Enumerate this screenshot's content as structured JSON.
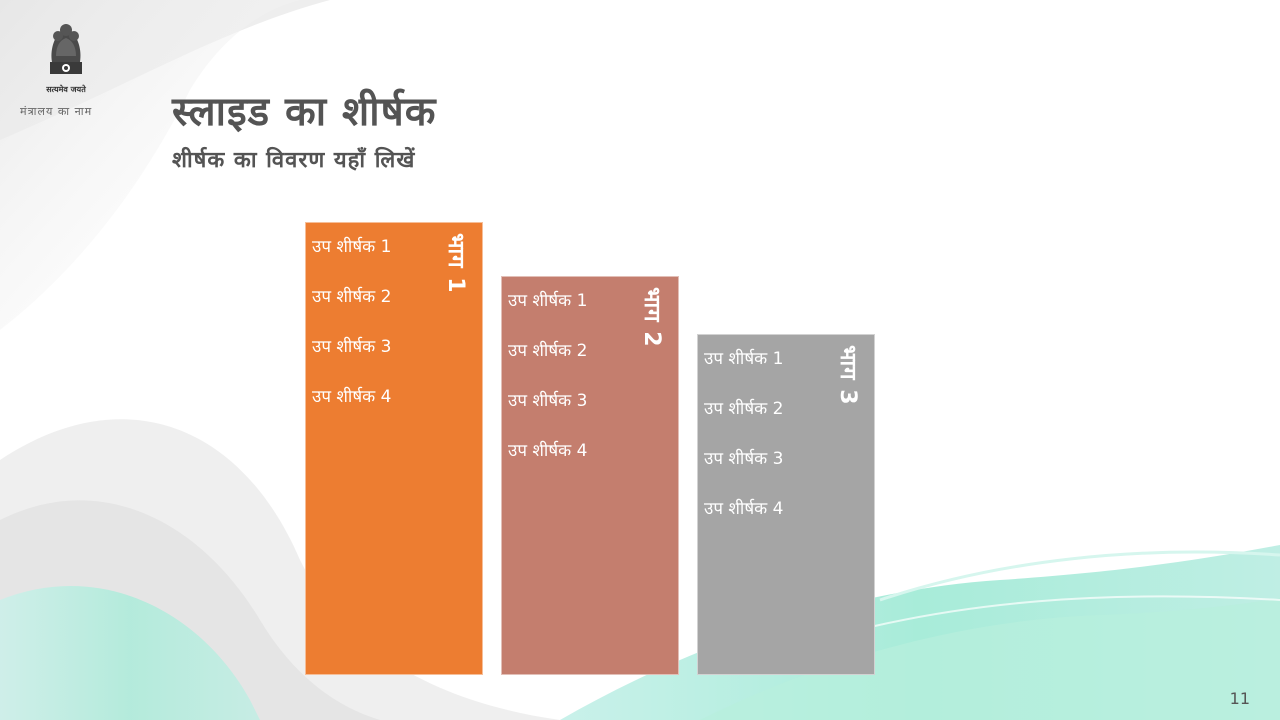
{
  "header": {
    "motto": "सत्यमेव जयते",
    "ministry": "मंत्रालय का नाम"
  },
  "slide": {
    "title": "स्लाइड का शीर्षक",
    "subtitle": "शीर्षक का विवरण यहाँ लिखें"
  },
  "panels": [
    {
      "label": "भाग 1",
      "color": "#ED7D31",
      "items": [
        "उप शीर्षक 1",
        "उप शीर्षक 2",
        "उप शीर्षक 3",
        "उप शीर्षक 4"
      ]
    },
    {
      "label": "भाग 2",
      "color": "#C47E6E",
      "items": [
        "उप शीर्षक 1",
        "उप शीर्षक 2",
        "उप शीर्षक 3",
        "उप शीर्षक 4"
      ]
    },
    {
      "label": "भाग 3",
      "color": "#A5A5A5",
      "items": [
        "उप शीर्षक 1",
        "उप शीर्षक 2",
        "उप शीर्षक 3",
        "उप शीर्षक 4"
      ]
    }
  ],
  "footer": {
    "page_number": "11"
  }
}
